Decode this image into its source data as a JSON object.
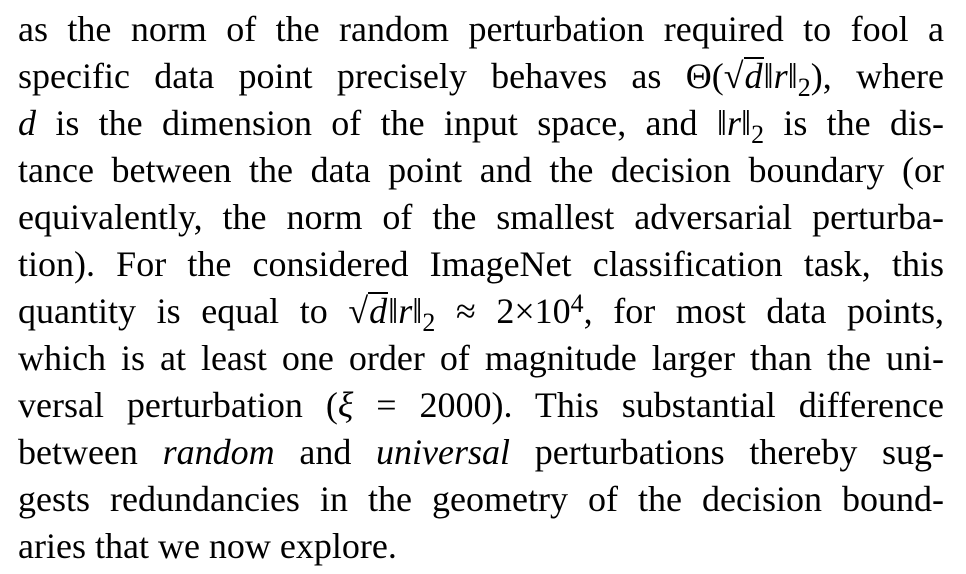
{
  "paragraph": {
    "lines": [
      "as the norm of the random perturbation required to fool a",
      "specific data point precisely behaves as Θ(√d‖r‖₂), where",
      "d is the dimension of the input space, and ‖r‖₂ is the dis-",
      "tance between the data point and the decision boundary (or",
      "equivalently, the norm of the smallest adversarial perturba-",
      "tion). For the considered ImageNet classification task, this",
      "quantity is equal to √d‖r‖₂ ≈ 2×10⁴, for most data points,",
      "which is at least one order of magnitude larger than the uni-",
      "versal perturbation (ξ = 2000). This substantial difference",
      "between random and universal perturbations thereby sug-",
      "gests redundancies in the geometry of the decision bound-",
      "aries that we now explore."
    ],
    "l1": "as the norm of the random perturbation required to fool a",
    "l2_pre": "specific data point precisely behaves as",
    "l2_post": ", where",
    "l3_mid": "is the dimension of the input space, and",
    "l3_post": "is the dis-",
    "l4": "tance between the data point and the decision boundary (or",
    "l5": "equivalently, the norm of the smallest adversarial perturba-",
    "l6": "tion). For the considered ImageNet classification task, this",
    "l7_pre": "quantity is equal to",
    "l7_post": ", for most data points,",
    "l8": "which is at least one order of magnitude larger than the uni-",
    "l9_pre": "versal perturbation (",
    "l9_post": "2000). This substantial difference",
    "l10_a": "between",
    "l10_random": "random",
    "l10_b": "and",
    "l10_universal": "universal",
    "l10_c": "perturbations thereby sug-",
    "l11": "gests redundancies in the geometry of the decision bound-",
    "l12": "aries that we now explore."
  }
}
